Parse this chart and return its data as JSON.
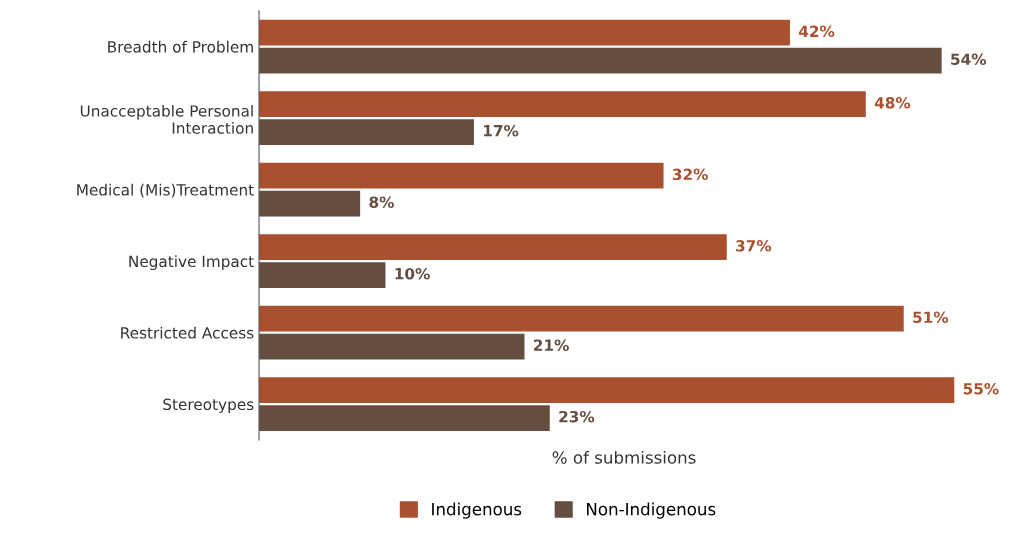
{
  "chart_data": {
    "type": "bar",
    "orientation": "horizontal",
    "xlabel": "% of submissions",
    "categories": [
      "Breadth of Problem",
      "Unacceptable Personal\nInteraction",
      "Medical (Mis)Treatment",
      "Negative Impact",
      "Restricted Access",
      "Stereotypes"
    ],
    "series": [
      {
        "name": "Indigenous",
        "color": "#a9512f",
        "values": [
          42,
          48,
          32,
          37,
          51,
          55
        ],
        "value_labels": [
          "42%",
          "48%",
          "32%",
          "37%",
          "51%",
          "55%"
        ]
      },
      {
        "name": "Non-Indigenous",
        "color": "#654e40",
        "values": [
          54,
          17,
          8,
          10,
          21,
          23
        ],
        "value_labels": [
          "54%",
          "17%",
          "8%",
          "10%",
          "21%",
          "23%"
        ]
      }
    ],
    "tick_labels": "y",
    "grid": false,
    "legend": "bottom"
  }
}
